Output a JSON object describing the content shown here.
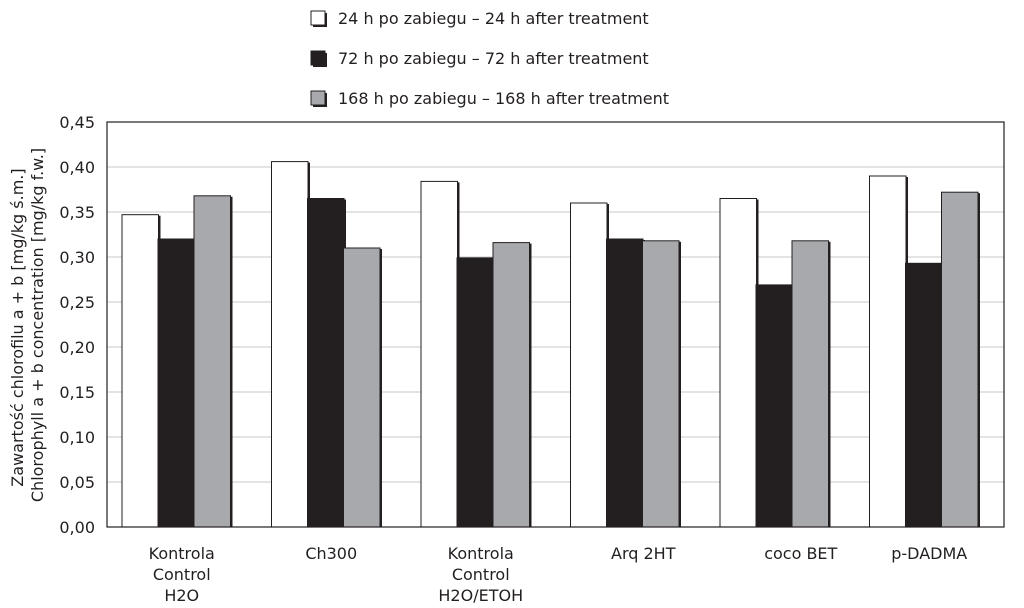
{
  "chart_data": {
    "type": "bar",
    "categories": [
      [
        "Kontrola",
        "Control",
        "H2O"
      ],
      [
        "Ch300"
      ],
      [
        "Kontrola",
        "Control",
        "H2O/ETOH"
      ],
      [
        "Arq 2HT"
      ],
      [
        "coco BET"
      ],
      [
        "p-DADMA"
      ]
    ],
    "series": [
      {
        "name": "24 h po zabiegu – 24 h after treatment",
        "color": "#ffffff",
        "values": [
          0.347,
          0.406,
          0.384,
          0.36,
          0.365,
          0.39
        ]
      },
      {
        "name": "72 h po zabiegu – 72 h after treatment",
        "color": "#231f20",
        "values": [
          0.32,
          0.365,
          0.299,
          0.32,
          0.269,
          0.293
        ]
      },
      {
        "name": "168 h po zabiegu – 168 h after treatment",
        "color": "#a7a9ac",
        "values": [
          0.368,
          0.31,
          0.316,
          0.318,
          0.318,
          0.372
        ]
      }
    ],
    "ylabel_lines": [
      "Zawartość chlorofilu a + b [mg/kg ś.m.]",
      "Chlorophyll a + b concentration [mg/kg f.w.]"
    ],
    "ylim": [
      0,
      0.45
    ],
    "yticks": [
      0,
      0.05,
      0.1,
      0.15,
      0.2,
      0.25,
      0.3,
      0.35,
      0.4,
      0.45
    ],
    "ytick_labels": [
      "0,00",
      "0,05",
      "0,10",
      "0,15",
      "0,20",
      "0,25",
      "0,30",
      "0,35",
      "0,40",
      "0,45"
    ],
    "grid": true,
    "legend_position": "top"
  }
}
